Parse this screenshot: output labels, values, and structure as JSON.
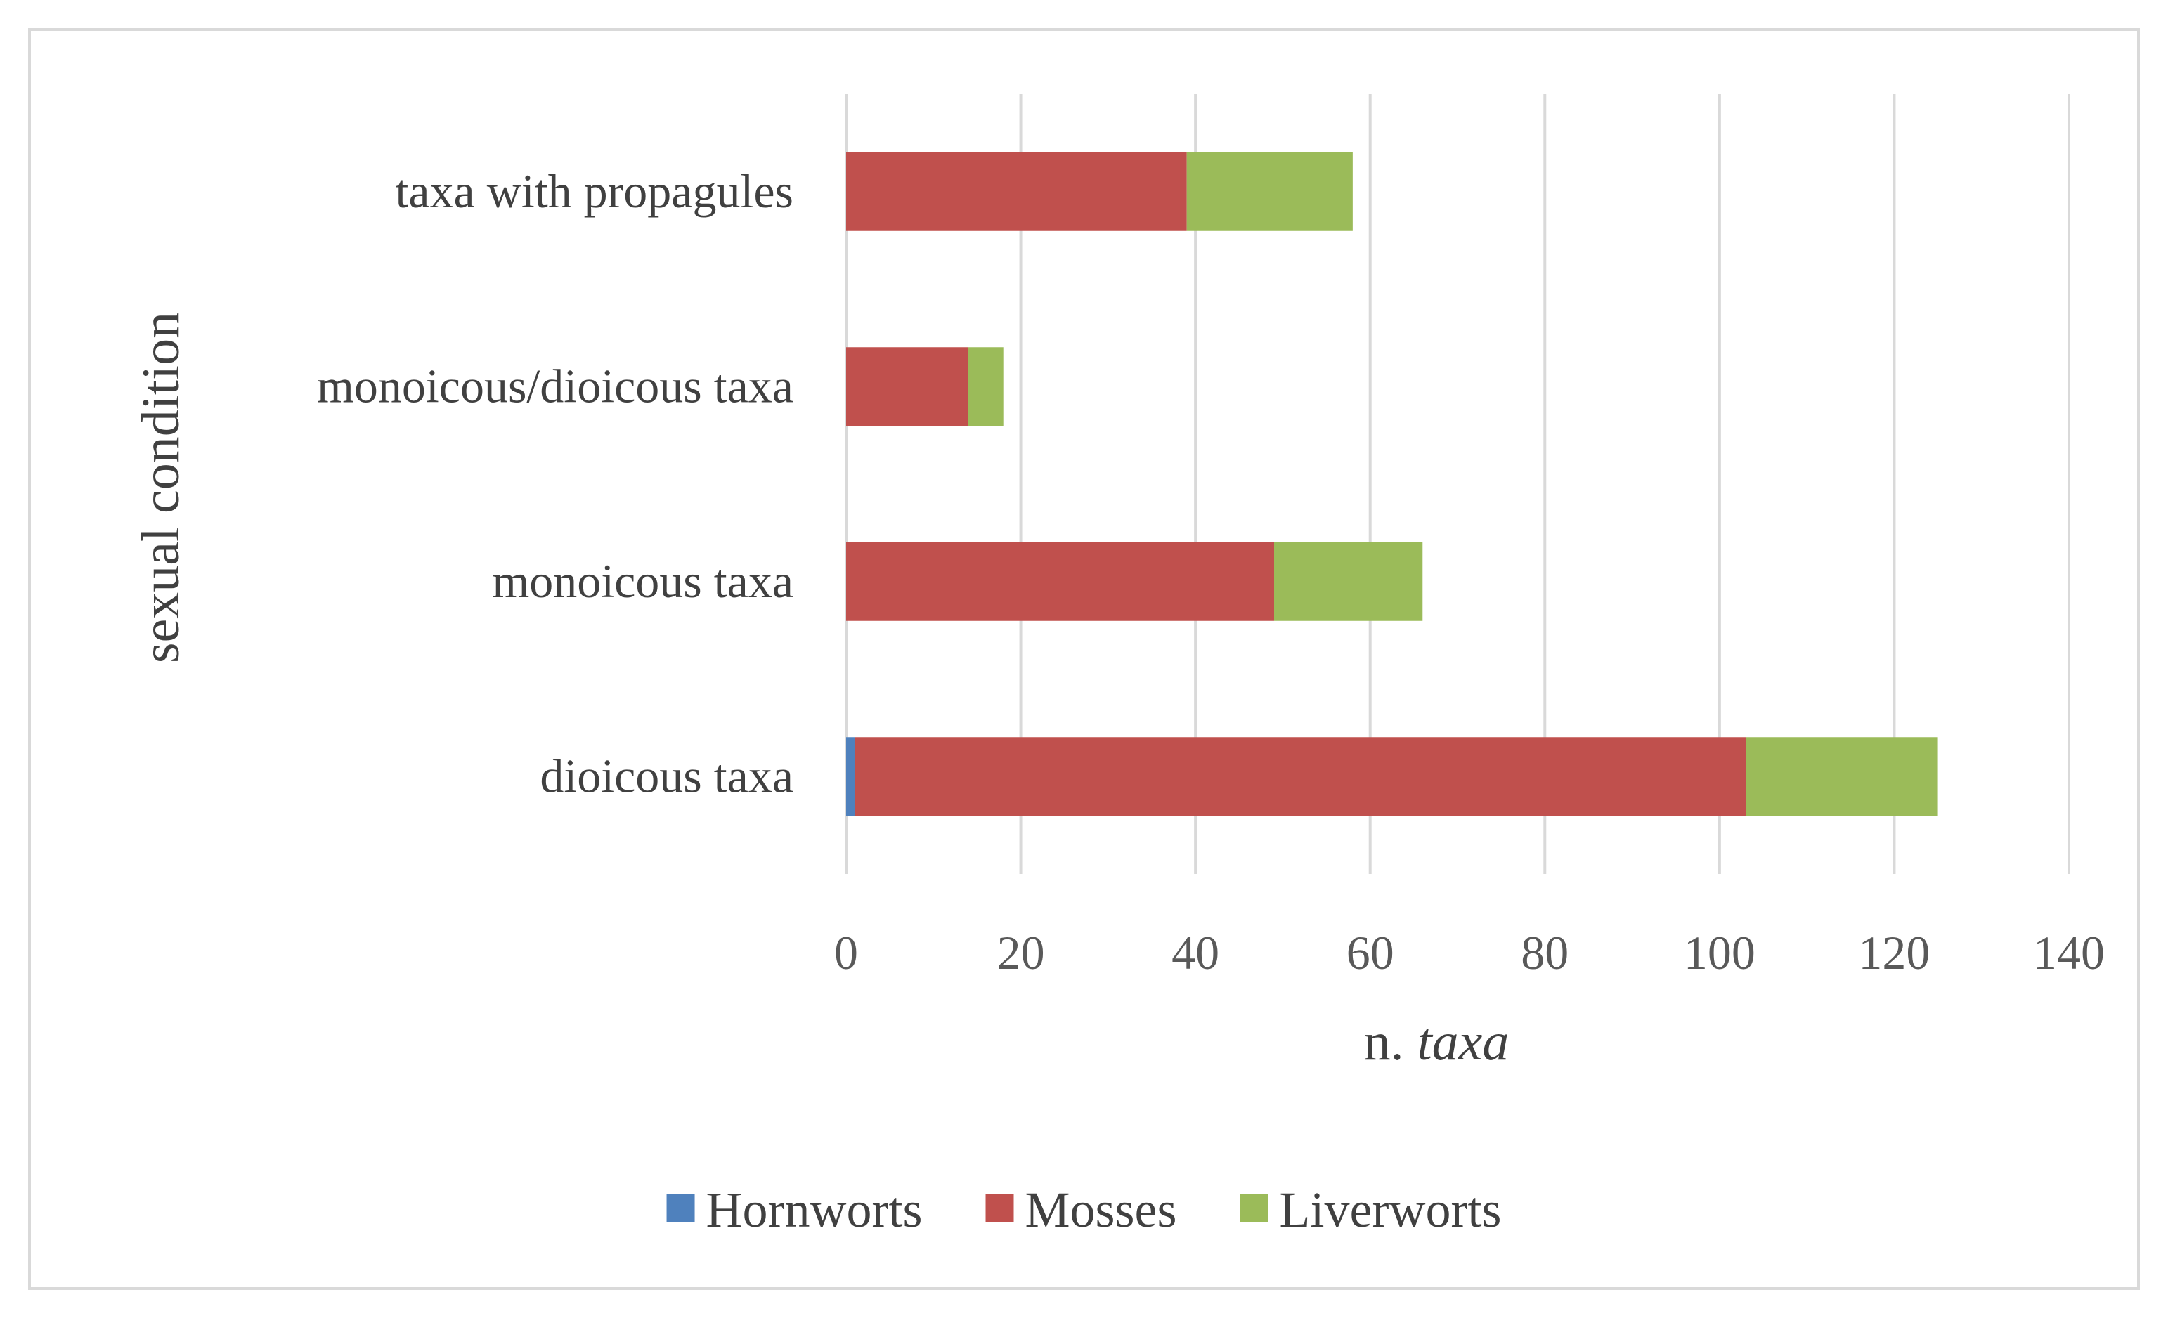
{
  "chart_data": {
    "type": "bar",
    "orientation": "horizontal",
    "stacked": true,
    "categories": [
      "dioicous taxa",
      "monoicous taxa",
      "monoicous/dioicous taxa",
      "taxa with propagules"
    ],
    "series": [
      {
        "name": "Hornworts",
        "color": "#4f81bd",
        "values": [
          1,
          0,
          0,
          0
        ]
      },
      {
        "name": "Mosses",
        "color": "#c0504d",
        "values": [
          102,
          49,
          14,
          39
        ]
      },
      {
        "name": "Liverworts",
        "color": "#9bbb59",
        "values": [
          22,
          17,
          4,
          19
        ]
      }
    ],
    "title": "",
    "xlabel_prefix": "n. ",
    "xlabel_italic": "taxa",
    "ylabel": "sexual condition",
    "xlim": [
      0,
      140
    ],
    "xticks": [
      0,
      20,
      40,
      60,
      80,
      100,
      120,
      140
    ],
    "grid": "vertical",
    "legend": "bottom",
    "colors": {
      "gridline": "#d9d9d9",
      "text": "#404040",
      "tick_text": "#595959"
    }
  }
}
